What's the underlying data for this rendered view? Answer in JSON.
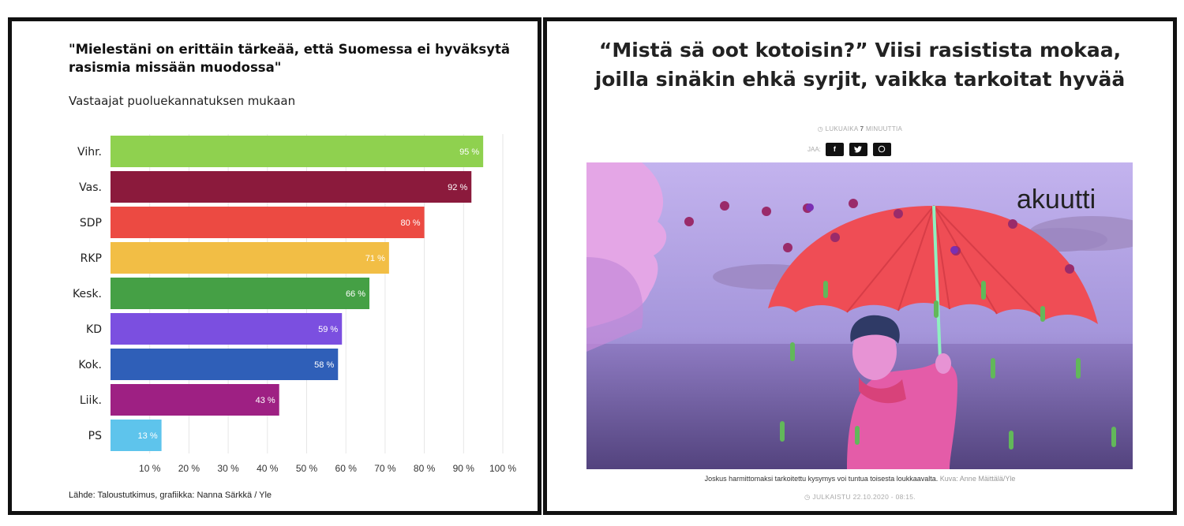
{
  "chart_data": {
    "type": "bar",
    "orientation": "horizontal",
    "title": "\"Mielestäni on erittäin tärkeää, että Suomessa ei hyväksytä rasismia missään muodossa\"",
    "subtitle": "Vastaajat puoluekannatuksen mukaan",
    "categories": [
      "Vihr.",
      "Vas.",
      "SDP",
      "RKP",
      "Kesk.",
      "KD",
      "Kok.",
      "Liik.",
      "PS"
    ],
    "values": [
      95,
      92,
      80,
      71,
      66,
      59,
      58,
      43,
      13
    ],
    "value_labels": [
      "95 %",
      "92 %",
      "80 %",
      "71 %",
      "66 %",
      "59 %",
      "58 %",
      "43 %",
      "13 %"
    ],
    "colors": [
      "#8fd14f",
      "#8b1a3c",
      "#ec4a42",
      "#f2be45",
      "#45a045",
      "#7b4fe0",
      "#2f5fb8",
      "#9e2083",
      "#5ec4ec"
    ],
    "xlim": [
      0,
      100
    ],
    "xticks": [
      10,
      20,
      30,
      40,
      50,
      60,
      70,
      80,
      90,
      100
    ],
    "xtick_labels": [
      "10 %",
      "20 %",
      "30 %",
      "40 %",
      "50 %",
      "60 %",
      "70 %",
      "80 %",
      "90 %",
      "100 %"
    ],
    "grid": true,
    "source": "Lähde: Taloustutkimus, grafiikka: Nanna Särkkä / Yle"
  },
  "article": {
    "title": "“Mistä sä oot kotoisin?” Viisi rasististа mokaa, joilla sinäkin ehkä syrjit, vaikka tarkoitat hyvää",
    "reading_time_prefix": "LUKUAIKA",
    "reading_time_value": "7",
    "reading_time_unit": "MINUUTTIA",
    "share_label": "JAA:",
    "share_buttons": [
      {
        "glyph": "f",
        "icon": "facebook-icon"
      },
      {
        "glyph": "t",
        "icon": "twitter-icon"
      },
      {
        "glyph": "w",
        "icon": "whatsapp-icon"
      }
    ],
    "hero_logo": "akuutti",
    "caption_text": "Joskus harmittomaksi tarkoitettu kysymys voi tuntua toisesta loukkaavalta.",
    "caption_credit": "Kuva: Anne Mäittälä/Yle",
    "published": "JULKAISTU 22.10.2020 - 08:15."
  },
  "colors": {
    "hero_sky": "#b8a6e6",
    "umbrella": "#ef4d55",
    "figure": "#e45ca8"
  }
}
